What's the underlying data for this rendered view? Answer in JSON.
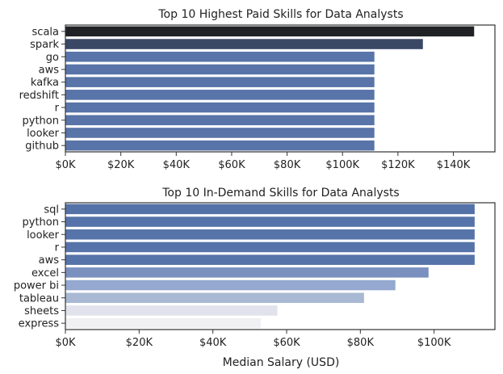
{
  "chart_data": [
    {
      "type": "bar",
      "orientation": "horizontal",
      "title": "Top 10 Highest Paid Skills for Data Analysts",
      "xlabel": "",
      "ylabel": "",
      "categories": [
        "scala",
        "spark",
        "go",
        "aws",
        "kafka",
        "redshift",
        "r",
        "python",
        "looker",
        "github"
      ],
      "values": [
        147500,
        129000,
        111500,
        111500,
        111500,
        111500,
        111500,
        111500,
        111500,
        111500
      ],
      "bar_colors": [
        "#1f2125",
        "#3a4866",
        "#5874a8",
        "#5874a8",
        "#5874a8",
        "#5874a8",
        "#5874a8",
        "#5874a8",
        "#5874a8",
        "#5874a8"
      ],
      "xlim": [
        0,
        155000
      ],
      "xticks": [
        0,
        20000,
        40000,
        60000,
        80000,
        100000,
        120000,
        140000
      ],
      "xtick_labels": [
        "$0K",
        "$20K",
        "$40K",
        "$60K",
        "$80K",
        "$100K",
        "$120K",
        "$140K"
      ],
      "grid": false,
      "legend": "none"
    },
    {
      "type": "bar",
      "orientation": "horizontal",
      "title": "Top 10 In-Demand Skills for Data Analysts",
      "xlabel": "Median Salary (USD)",
      "ylabel": "",
      "categories": [
        "sql",
        "python",
        "looker",
        "r",
        "aws",
        "excel",
        "power bi",
        "tableau",
        "sheets",
        "express"
      ],
      "values": [
        111000,
        111000,
        111000,
        111000,
        111000,
        98500,
        89500,
        81000,
        57500,
        53000
      ],
      "bar_colors": [
        "#5472a8",
        "#5674a9",
        "#5674a9",
        "#5674a9",
        "#5674a9",
        "#7a91bf",
        "#95a8cf",
        "#a9b8d3",
        "#e0e3ec",
        "#f0f0f2"
      ],
      "xlim": [
        0,
        116500
      ],
      "xticks": [
        0,
        20000,
        40000,
        60000,
        80000,
        100000
      ],
      "xtick_labels": [
        "$0K",
        "$20K",
        "$40K",
        "$60K",
        "$80K",
        "$100K"
      ],
      "grid": false,
      "legend": "none"
    }
  ]
}
